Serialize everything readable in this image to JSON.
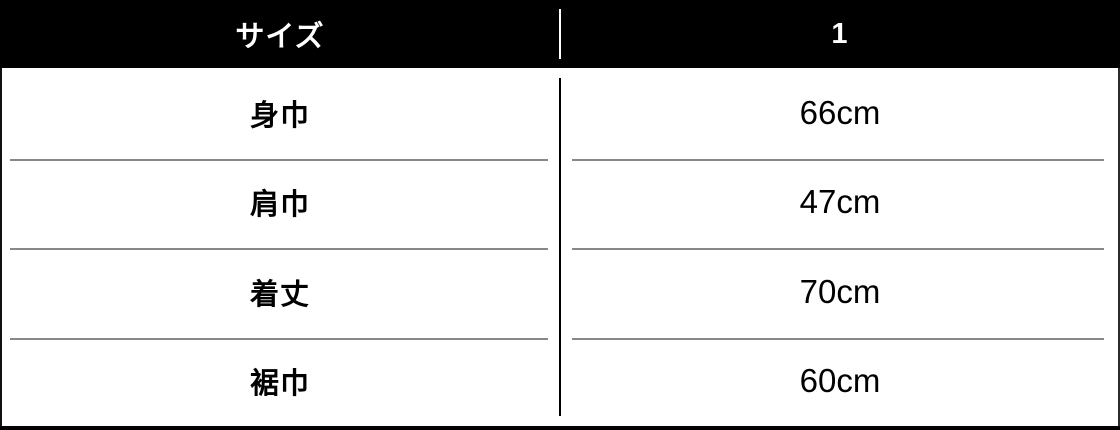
{
  "table": {
    "header": {
      "size_column": "サイズ",
      "size_value": "1"
    },
    "rows": [
      {
        "label": "身巾",
        "value": "66cm"
      },
      {
        "label": "肩巾",
        "value": "47cm"
      },
      {
        "label": "着丈",
        "value": "70cm"
      },
      {
        "label": "裾巾",
        "value": "60cm"
      }
    ],
    "colors": {
      "header_bg": "#000000",
      "header_text": "#ffffff",
      "body_bg": "#ffffff",
      "body_text": "#000000",
      "row_divider": "#888888",
      "outer_border": "#000000"
    }
  },
  "chart_data": {
    "type": "table",
    "title": "",
    "columns": [
      "サイズ",
      "1"
    ],
    "rows": [
      [
        "身巾",
        "66cm"
      ],
      [
        "肩巾",
        "47cm"
      ],
      [
        "着丈",
        "70cm"
      ],
      [
        "裾巾",
        "60cm"
      ]
    ]
  }
}
